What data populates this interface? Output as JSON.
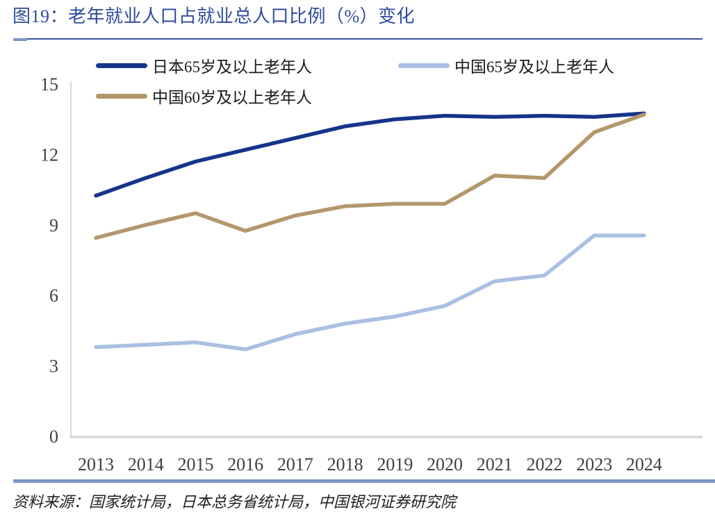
{
  "header": {
    "title": "图19：老年就业人口占就业总人口比例（%）变化"
  },
  "legend": {
    "items": [
      {
        "label": "日本65岁及以上老年人",
        "color": "#15348B"
      },
      {
        "label": "中国65岁及以上老年人",
        "color": "#A9BFE3"
      },
      {
        "label": "中国60岁及以上老年人",
        "color": "#B3976B"
      }
    ]
  },
  "footer": {
    "source": "资料来源：国家统计局，日本总务省统计局，中国银河证券研究院"
  },
  "colors": {
    "title_blue": "#2F4C9C",
    "rule_dark": "#3A53A0",
    "rule_light": "#7C95C6",
    "bottom_bar": "#7C95C6",
    "axis_gray": "#D9D9D9",
    "tick_text": "#3F3F3F"
  },
  "chart_data": {
    "type": "line",
    "title": "老年就业人口占就业总人口比例（%）变化",
    "xlabel": "",
    "ylabel": "",
    "categories": [
      "2013",
      "2014",
      "2015",
      "2016",
      "2017",
      "2018",
      "2019",
      "2020",
      "2021",
      "2022",
      "2023",
      "2024"
    ],
    "series": [
      {
        "name": "日本65岁及以上老年人",
        "color": "#15348B",
        "values": [
          10.25,
          11.0,
          11.7,
          12.2,
          12.7,
          13.2,
          13.5,
          13.65,
          13.6,
          13.65,
          13.6,
          13.75
        ]
      },
      {
        "name": "中国60岁及以上老年人",
        "color": "#B3976B",
        "values": [
          8.45,
          9.0,
          9.5,
          8.75,
          9.4,
          9.8,
          9.9,
          9.9,
          11.1,
          11.0,
          12.95,
          13.7
        ]
      },
      {
        "name": "中国65岁及以上老年人",
        "color": "#A9BFE3",
        "values": [
          3.8,
          3.9,
          4.0,
          3.7,
          4.35,
          4.8,
          5.1,
          5.55,
          6.6,
          6.85,
          8.55,
          8.55
        ]
      }
    ],
    "ylim": [
      0,
      15
    ],
    "yticks": [
      0,
      3,
      6,
      9,
      12,
      15
    ],
    "grid": false,
    "legend_position": "top"
  }
}
